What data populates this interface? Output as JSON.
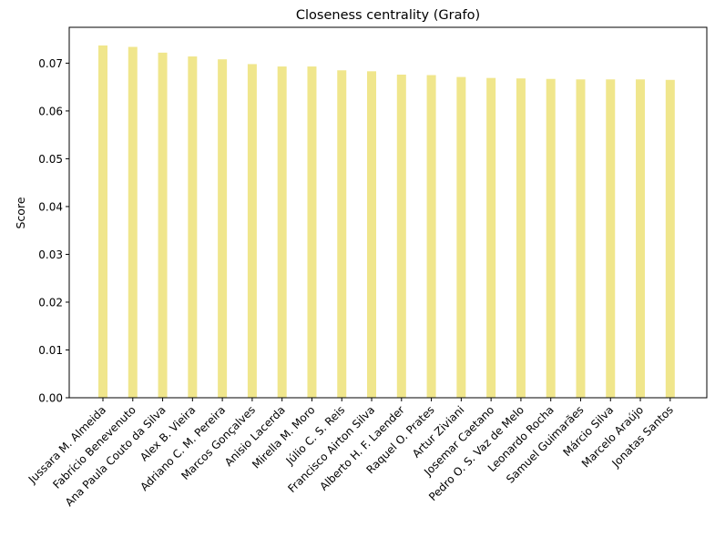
{
  "chart_data": {
    "type": "bar",
    "title": "Closeness centrality (Grafo)",
    "xlabel": "",
    "ylabel": "Score",
    "ylim": [
      0,
      0.0775
    ],
    "yticks": [
      "0.00",
      "0.01",
      "0.02",
      "0.03",
      "0.04",
      "0.05",
      "0.06",
      "0.07"
    ],
    "bar_color": "#f0e68c",
    "grid": false,
    "categories": [
      "Jussara M. Almeida",
      "Fabrício Benevenuto",
      "Ana Paula Couto da Silva",
      "Alex B. Vieira",
      "Adriano C. M. Pereira",
      "Marcos Gonçalves",
      "Anisio Lacerda",
      "Mirella M. Moro",
      "Júlio C. S. Reis",
      "Francisco Airton Silva",
      "Alberto H. F. Laender",
      "Raquel O. Prates",
      "Artur Ziviani",
      "Josemar Caetano",
      "Pedro O. S. Vaz de Melo",
      "Leonardo Rocha",
      "Samuel Guimarães",
      "Márcio Silva",
      "Marcelo Araújo",
      "Jonatas Santos"
    ],
    "values": [
      0.0737,
      0.0734,
      0.0722,
      0.0714,
      0.0708,
      0.0698,
      0.0693,
      0.0693,
      0.0685,
      0.0683,
      0.0676,
      0.0675,
      0.0671,
      0.0669,
      0.0668,
      0.0667,
      0.0666,
      0.0666,
      0.0666,
      0.0665
    ]
  }
}
